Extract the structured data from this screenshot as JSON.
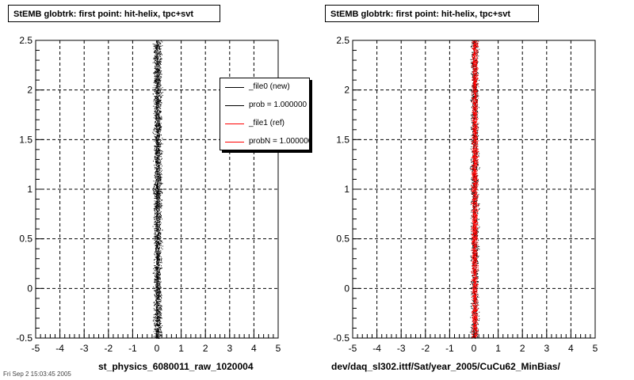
{
  "footer": "Fri Sep  2 15:03:45 2005",
  "legend": [
    {
      "label": "_file0 (new)",
      "color": "#000000"
    },
    {
      "label": "prob = 1.000000",
      "color": "#000000"
    },
    {
      "label": "_file1 (ref)",
      "color": "#ff0000"
    },
    {
      "label": "probN = 1.000000",
      "color": "#ff0000"
    }
  ],
  "chart_data": [
    {
      "type": "scatter",
      "title": "StEMB globtrk: first point: hit-helix, tpc+svt",
      "xlabel": "st_physics_6080011_raw_1020004",
      "ylabel": "",
      "xlim": [
        -5,
        5
      ],
      "ylim": [
        -0.5,
        2.5
      ],
      "xticks": [
        "-5",
        "-4",
        "-3",
        "-2",
        "-1",
        "0",
        "1",
        "2",
        "3",
        "4",
        "5"
      ],
      "yticks": [
        "-0.5",
        "0",
        "0.5",
        "1",
        "1.5",
        "2",
        "2.5"
      ],
      "grid": true,
      "legend_position": "top-right",
      "series": [
        {
          "color": "#000000",
          "x_range": [
            -0.2,
            0.25
          ],
          "y_range": [
            -0.5,
            2.5
          ],
          "points": 3000
        }
      ]
    },
    {
      "type": "scatter",
      "title": "StEMB globtrk: first point: hit-helix, tpc+svt",
      "xlabel": "dev/daq_sl302.ittf/Sat/year_2005/CuCu62_MinBias/",
      "ylabel": "",
      "xlim": [
        -5,
        5
      ],
      "ylim": [
        -0.5,
        2.5
      ],
      "xticks": [
        "-5",
        "-4",
        "-3",
        "-2",
        "-1",
        "0",
        "1",
        "2",
        "3",
        "4",
        "5"
      ],
      "yticks": [
        "-0.5",
        "0",
        "0.5",
        "1",
        "1.5",
        "2",
        "2.5"
      ],
      "grid": true,
      "legend_position": "none",
      "series": [
        {
          "color": "#000000",
          "x_range": [
            -0.2,
            0.25
          ],
          "y_range": [
            -0.5,
            2.5
          ],
          "points": 1800
        },
        {
          "color": "#ff0000",
          "x_range": [
            -0.15,
            0.2
          ],
          "y_range": [
            -0.5,
            2.5
          ],
          "points": 2600
        }
      ]
    }
  ]
}
